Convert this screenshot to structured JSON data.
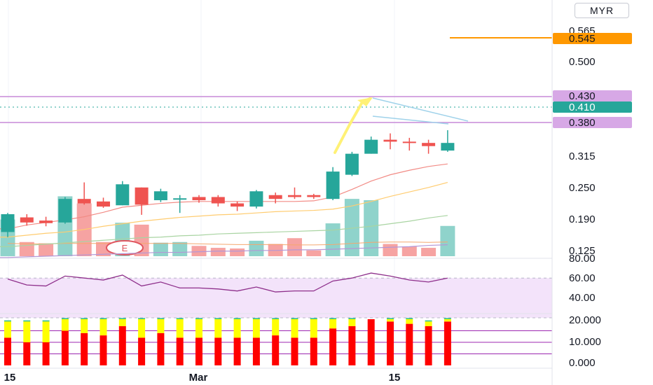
{
  "currency": "MYR",
  "colors": {
    "up": "#26a69a",
    "down": "#ef5350",
    "volume_up": "#8fd3cb",
    "volume_down": "#f6a3a2",
    "level_line": "#c78ad8",
    "target_line": "#ff9800",
    "current_tag": "#26a69a",
    "level_tag": "#d7a8e6",
    "rsi": "#8e2f8b",
    "rsi_band": "#f3e3fa",
    "bar_red": "#ff0000",
    "bar_yellow": "#ffff00",
    "bar_green": "#34c08d",
    "ma1": "#f28b85",
    "ma2": "#ffcc70",
    "ma3": "#a9d4a2",
    "ma4": "#b497d6",
    "vol_ma": "#f5a76e",
    "trend": "#fff176",
    "wedge": "#9fd2ea"
  },
  "chart_data": [
    {
      "type": "candlestick",
      "y_ticks": [
        "0.565",
        "0.500",
        "0.315",
        "0.250",
        "0.190",
        "0.125"
      ],
      "x_ticks": [
        "15",
        "Mar",
        "15"
      ],
      "tags": [
        {
          "label": "0.545",
          "kind": "target"
        },
        {
          "label": "0.430",
          "kind": "level"
        },
        {
          "label": "0.410",
          "kind": "current"
        },
        {
          "label": "0.380",
          "kind": "level"
        }
      ],
      "candles": [
        {
          "o": 0.27,
          "h": 0.3,
          "l": 0.262,
          "c": 0.298
        },
        {
          "o": 0.293,
          "h": 0.298,
          "l": 0.28,
          "c": 0.285
        },
        {
          "o": 0.288,
          "h": 0.294,
          "l": 0.279,
          "c": 0.284
        },
        {
          "o": 0.285,
          "h": 0.325,
          "l": 0.283,
          "c": 0.322
        },
        {
          "o": 0.322,
          "h": 0.348,
          "l": 0.313,
          "c": 0.315
        },
        {
          "o": 0.318,
          "h": 0.324,
          "l": 0.308,
          "c": 0.31
        },
        {
          "o": 0.312,
          "h": 0.35,
          "l": 0.312,
          "c": 0.345
        },
        {
          "o": 0.34,
          "h": 0.34,
          "l": 0.297,
          "c": 0.313
        },
        {
          "o": 0.32,
          "h": 0.338,
          "l": 0.317,
          "c": 0.334
        },
        {
          "o": 0.323,
          "h": 0.328,
          "l": 0.3,
          "c": 0.323
        },
        {
          "o": 0.325,
          "h": 0.328,
          "l": 0.316,
          "c": 0.32
        },
        {
          "o": 0.325,
          "h": 0.328,
          "l": 0.31,
          "c": 0.315
        },
        {
          "o": 0.315,
          "h": 0.318,
          "l": 0.303,
          "c": 0.31
        },
        {
          "o": 0.31,
          "h": 0.336,
          "l": 0.307,
          "c": 0.334
        },
        {
          "o": 0.328,
          "h": 0.332,
          "l": 0.315,
          "c": 0.322
        },
        {
          "o": 0.328,
          "h": 0.34,
          "l": 0.322,
          "c": 0.325
        },
        {
          "o": 0.328,
          "h": 0.33,
          "l": 0.322,
          "c": 0.325
        },
        {
          "o": 0.322,
          "h": 0.372,
          "l": 0.32,
          "c": 0.365
        },
        {
          "o": 0.36,
          "h": 0.396,
          "l": 0.358,
          "c": 0.393
        },
        {
          "o": 0.393,
          "h": 0.42,
          "l": 0.393,
          "c": 0.415
        },
        {
          "o": 0.415,
          "h": 0.425,
          "l": 0.4,
          "c": 0.412
        },
        {
          "o": 0.412,
          "h": 0.418,
          "l": 0.398,
          "c": 0.41
        },
        {
          "o": 0.41,
          "h": 0.415,
          "l": 0.393,
          "c": 0.405
        },
        {
          "o": 0.398,
          "h": 0.43,
          "l": 0.396,
          "c": 0.41
        }
      ],
      "volume": [
        0.57,
        0.22,
        0.2,
        0.93,
        0.82,
        0.22,
        0.52,
        0.49,
        0.21,
        0.22,
        0.16,
        0.13,
        0.12,
        0.24,
        0.19,
        0.28,
        0.09,
        0.51,
        0.89,
        0.87,
        0.19,
        0.15,
        0.13,
        0.47
      ],
      "ma_lines": [
        [
          0.275,
          0.281,
          0.285,
          0.289,
          0.294,
          0.301,
          0.309,
          0.312,
          0.315,
          0.317,
          0.318,
          0.318,
          0.318,
          0.318,
          0.318,
          0.318,
          0.319,
          0.325,
          0.337,
          0.35,
          0.36,
          0.367,
          0.373,
          0.377
        ],
        [
          0.262,
          0.265,
          0.268,
          0.27,
          0.274,
          0.279,
          0.283,
          0.287,
          0.29,
          0.293,
          0.295,
          0.297,
          0.298,
          0.3,
          0.302,
          0.303,
          0.304,
          0.306,
          0.311,
          0.318,
          0.326,
          0.333,
          0.34,
          0.348
        ],
        [
          0.247,
          0.249,
          0.251,
          0.253,
          0.255,
          0.257,
          0.259,
          0.261,
          0.262,
          0.264,
          0.265,
          0.267,
          0.268,
          0.269,
          0.27,
          0.271,
          0.272,
          0.273,
          0.276,
          0.279,
          0.283,
          0.287,
          0.292,
          0.296
        ],
        [
          0.23,
          0.231,
          0.232,
          0.233,
          0.234,
          0.235,
          0.236,
          0.237,
          0.238,
          0.238,
          0.239,
          0.24,
          0.24,
          0.241,
          0.241,
          0.242,
          0.242,
          0.243,
          0.244,
          0.245,
          0.246,
          0.247,
          0.249,
          0.25
        ]
      ],
      "volume_ma": [
        0.35,
        0.34,
        0.34,
        0.35,
        0.35,
        0.35,
        0.35,
        0.35,
        0.35,
        0.35,
        0.34,
        0.33,
        0.32,
        0.32,
        0.32,
        0.31,
        0.31,
        0.32,
        0.35,
        0.38,
        0.39,
        0.39,
        0.38,
        0.39
      ],
      "earnings_marker": "E"
    },
    {
      "type": "line",
      "y_ticks": [
        "80.00",
        "60.00",
        "40.00"
      ],
      "band": [
        30,
        70
      ],
      "values": [
        69,
        63,
        62,
        72,
        70,
        68,
        73,
        62,
        66,
        60,
        60,
        59,
        57,
        61,
        56,
        57,
        57,
        67,
        70,
        75,
        72,
        68,
        66,
        70
      ]
    },
    {
      "type": "bar",
      "y_ticks": [
        "20.000",
        "10.000",
        "0.000"
      ],
      "ref_lines": [
        15,
        10,
        5
      ],
      "red": [
        12,
        10,
        10,
        15,
        14,
        13,
        17,
        12,
        14,
        12,
        12,
        12,
        12,
        12,
        13,
        12,
        12,
        16,
        17,
        20,
        19,
        18,
        17,
        19
      ],
      "yellow": [
        7,
        9,
        9,
        5,
        6,
        7,
        3,
        8,
        6,
        8,
        8,
        8,
        8,
        8,
        7,
        8,
        8,
        4,
        3,
        0,
        1,
        2,
        2,
        1
      ],
      "green": [
        0.5,
        0.5,
        0.5,
        0.5,
        0.5,
        0.5,
        0.5,
        0.5,
        0.5,
        0.5,
        0.5,
        0.5,
        0.5,
        0.5,
        0.5,
        0.5,
        0.5,
        0.5,
        0.5,
        0,
        0.5,
        0.5,
        0.5,
        0.5
      ]
    }
  ]
}
